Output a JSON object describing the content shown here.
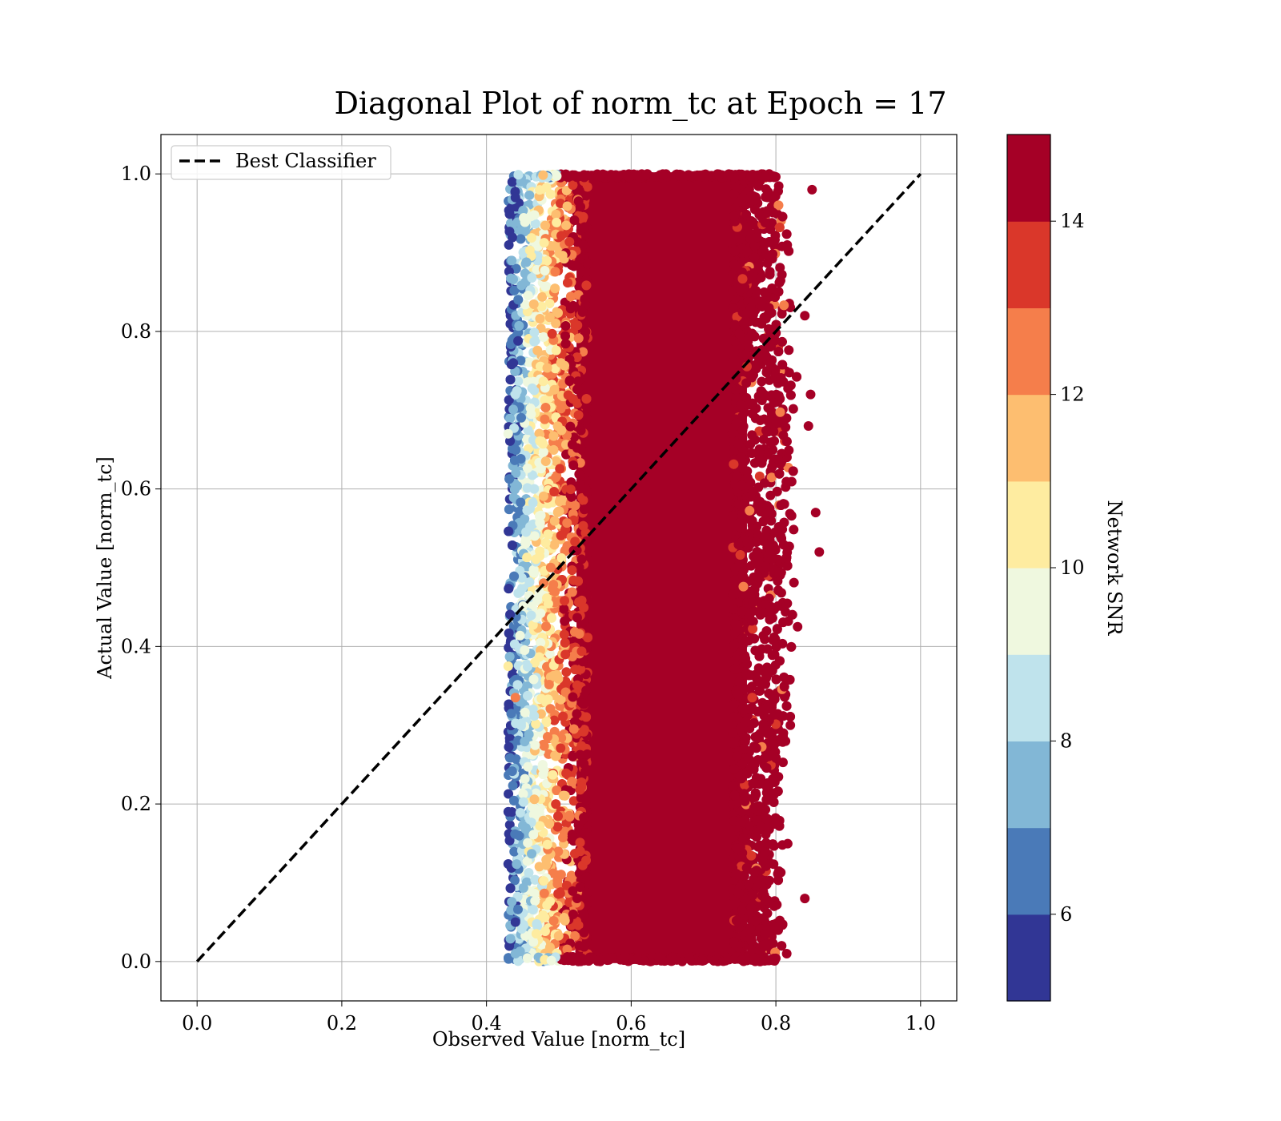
{
  "chart_data": {
    "type": "scatter",
    "title": "Diagonal Plot of norm_tc at Epoch = 17",
    "xlabel": "Observed Value [norm_tc]",
    "ylabel": "Actual Value [norm_tc]",
    "xlim": [
      -0.05,
      1.05
    ],
    "ylim": [
      -0.05,
      1.05
    ],
    "xticks": [
      "0.0",
      "0.2",
      "0.4",
      "0.6",
      "0.8",
      "1.0"
    ],
    "yticks": [
      "0.0",
      "0.2",
      "0.4",
      "0.6",
      "0.8",
      "1.0"
    ],
    "grid": true,
    "legend": {
      "placement": "upper-left",
      "entries": [
        "Best Classifier"
      ]
    },
    "reference_line": {
      "name": "Best Classifier",
      "style": "dashed",
      "color": "#000000",
      "x": [
        0.0,
        1.0
      ],
      "y": [
        0.0,
        1.0
      ]
    },
    "scatter_cloud": {
      "observed_range": [
        0.43,
        0.86
      ],
      "actual_range": [
        0.0,
        1.0
      ],
      "dense_core_observed_range": [
        0.52,
        0.79
      ],
      "dominant_color": "#a50026",
      "low_snr_points_located_at_observed": [
        0.43,
        0.5
      ],
      "high_snr_outliers": [
        {
          "x": 0.86,
          "y": 0.52
        },
        {
          "x": 0.855,
          "y": 0.57
        },
        {
          "x": 0.85,
          "y": 0.98
        },
        {
          "x": 0.848,
          "y": 0.72
        },
        {
          "x": 0.845,
          "y": 0.68
        },
        {
          "x": 0.84,
          "y": 0.82
        },
        {
          "x": 0.83,
          "y": 0.425
        },
        {
          "x": 0.82,
          "y": 0.3
        },
        {
          "x": 0.815,
          "y": 0.01
        },
        {
          "x": 0.84,
          "y": 0.08
        }
      ],
      "low_snr_outliers": [
        {
          "x": 0.44,
          "y": 0.97
        },
        {
          "x": 0.435,
          "y": 0.89
        },
        {
          "x": 0.44,
          "y": 0.72
        },
        {
          "x": 0.43,
          "y": 0.67
        },
        {
          "x": 0.43,
          "y": 0.375
        },
        {
          "x": 0.44,
          "y": 0.335
        },
        {
          "x": 0.44,
          "y": 0.05
        },
        {
          "x": 0.44,
          "y": 0.01
        }
      ]
    },
    "colorbar": {
      "label": "Network SNR",
      "range": [
        5,
        15
      ],
      "ticks": [
        "6",
        "8",
        "10",
        "12",
        "14"
      ],
      "levels": [
        {
          "from": 5,
          "to": 6,
          "color": "#313695"
        },
        {
          "from": 6,
          "to": 7,
          "color": "#4a7ab8"
        },
        {
          "from": 7,
          "to": 8,
          "color": "#82b7d6"
        },
        {
          "from": 8,
          "to": 9,
          "color": "#bfe3ec"
        },
        {
          "from": 9,
          "to": 10,
          "color": "#eff8df"
        },
        {
          "from": 10,
          "to": 11,
          "color": "#feeca0"
        },
        {
          "from": 11,
          "to": 12,
          "color": "#fdbe70"
        },
        {
          "from": 12,
          "to": 13,
          "color": "#f57e4b"
        },
        {
          "from": 13,
          "to": 14,
          "color": "#da372a"
        },
        {
          "from": 14,
          "to": 15,
          "color": "#a50026"
        }
      ]
    }
  }
}
